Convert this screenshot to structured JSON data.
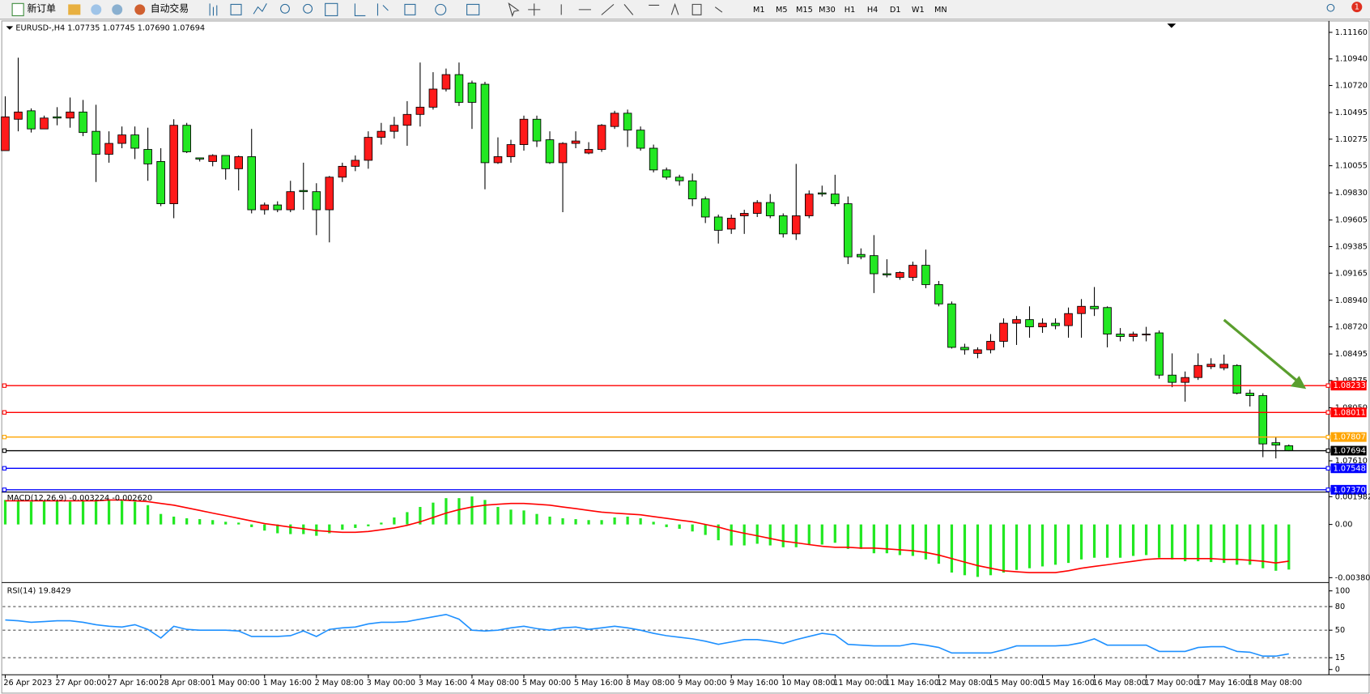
{
  "toolbar": {
    "new_order": "新订单",
    "auto_trading": "自动交易",
    "timeframes": [
      "M1",
      "M5",
      "M15",
      "M30",
      "H1",
      "H4",
      "D1",
      "W1",
      "MN"
    ],
    "notification_count": 1
  },
  "chart_data": [
    {
      "type": "candlestick",
      "title": "EURUSD-,H4 1.07735 1.07745 1.07690 1.07694",
      "categories": [
        "26 Apr 2023",
        null,
        null,
        null,
        "27 Apr 00:00",
        null,
        null,
        null,
        "27 Apr 16:00",
        null,
        null,
        null,
        "28 Apr 08:00",
        null,
        null,
        null,
        "1 May 00:00",
        null,
        null,
        null,
        "1 May 16:00",
        null,
        null,
        null,
        "2 May 08:00",
        null,
        null,
        null,
        "3 May 00:00",
        null,
        null,
        null,
        "3 May 16:00",
        null,
        null,
        null,
        "4 May 08:00",
        null,
        null,
        null,
        "5 May 00:00",
        null,
        null,
        null,
        "5 May 16:00",
        null,
        null,
        null,
        "8 May 08:00",
        null,
        null,
        null,
        "9 May 00:00",
        null,
        null,
        null,
        "9 May 16:00",
        null,
        null,
        null,
        "10 May 08:00",
        null,
        null,
        null,
        "11 May 00:00",
        null,
        null,
        null,
        "11 May 16:00",
        null,
        null,
        null,
        "12 May 08:00",
        null,
        null,
        null,
        "15 May 00:00",
        null,
        null,
        null,
        "15 May 16:00",
        null,
        null,
        null,
        "16 May 08:00",
        null,
        null,
        null,
        "17 May 00:00",
        null,
        null,
        null,
        "17 May 16:00",
        null,
        null,
        null,
        "18 May 08:00",
        null,
        null,
        null
      ],
      "open": [
        1.1018,
        1.1044,
        1.1051,
        1.1036,
        1.1046,
        1.1045,
        1.105,
        1.1034,
        1.1015,
        1.1024,
        1.1031,
        1.1019,
        1.1009,
        1.0974,
        1.1039,
        1.1012,
        1.1009,
        1.1014,
        1.1003,
        1.1013,
        1.0969,
        1.0973,
        1.0969,
        1.0985,
        1.0984,
        1.0969,
        1.0996,
        1.1005,
        1.101,
        1.1029,
        1.1034,
        1.1039,
        1.1048,
        1.1054,
        1.1069,
        1.1081,
        1.1074,
        1.1073,
        1.1008,
        1.1013,
        1.1023,
        1.1044,
        1.1027,
        1.1008,
        1.1024,
        1.1016,
        1.1019,
        1.1038,
        1.1049,
        1.1035,
        1.102,
        1.1002,
        1.0996,
        1.0993,
        1.0978,
        1.0963,
        1.0953,
        1.0964,
        1.0966,
        1.0975,
        1.0964,
        1.0949,
        1.0964,
        1.0983,
        1.0982,
        1.0974,
        1.0932,
        1.0931,
        1.0916,
        1.0913,
        1.0913,
        1.0923,
        1.0907,
        1.0891,
        1.0855,
        1.085,
        1.0853,
        1.086,
        1.0875,
        1.0878,
        1.0872,
        1.0875,
        1.0873,
        1.0883,
        1.0889,
        1.0888,
        1.0866,
        1.0864,
        1.0866,
        1.0867,
        1.0832,
        1.0826,
        1.083,
        1.0839,
        1.0838,
        1.084,
        1.0817,
        1.0815,
        1.0776,
        1.07735
      ],
      "high": [
        1.1063,
        1.1095,
        1.1053,
        1.1047,
        1.1054,
        1.1062,
        1.106,
        1.1056,
        1.1034,
        1.1038,
        1.1038,
        1.1037,
        1.102,
        1.1044,
        1.1041,
        1.1012,
        1.1015,
        1.1014,
        1.1014,
        1.1036,
        1.0975,
        1.0976,
        1.0993,
        1.1008,
        1.0991,
        1.0997,
        1.1008,
        1.1014,
        1.1034,
        1.1041,
        1.1046,
        1.1059,
        1.1091,
        1.1083,
        1.1086,
        1.1091,
        1.1076,
        1.1075,
        1.1029,
        1.1027,
        1.1047,
        1.1047,
        1.1034,
        1.1025,
        1.1034,
        1.1025,
        1.104,
        1.1051,
        1.1052,
        1.1038,
        1.1023,
        1.1004,
        1.0998,
        1.0999,
        1.098,
        1.0965,
        1.0965,
        1.0969,
        1.0977,
        1.0982,
        1.0966,
        1.1007,
        1.0985,
        1.0989,
        1.0998,
        1.098,
        1.0937,
        1.0948,
        1.0928,
        1.0918,
        1.0926,
        1.0936,
        1.091,
        1.0893,
        1.0858,
        1.0855,
        1.0866,
        1.0879,
        1.0881,
        1.0889,
        1.0879,
        1.0879,
        1.0888,
        1.0895,
        1.0905,
        1.0889,
        1.0871,
        1.0868,
        1.0872,
        1.0869,
        1.085,
        1.0835,
        1.085,
        1.0846,
        1.0849,
        1.0841,
        1.082,
        1.0817,
        1.0781,
        1.07745
      ],
      "low": [
        1.1018,
        1.1034,
        1.1033,
        1.1036,
        1.1039,
        1.1037,
        1.103,
        1.0992,
        1.1008,
        1.102,
        1.1011,
        1.0993,
        1.0972,
        1.0962,
        1.1016,
        1.1009,
        1.1005,
        1.0994,
        1.0985,
        1.0966,
        1.0965,
        1.0967,
        1.0967,
        1.0969,
        1.0948,
        1.0942,
        1.0992,
        1.1001,
        1.1003,
        1.1023,
        1.1028,
        1.1022,
        1.1038,
        1.1052,
        1.1067,
        1.1055,
        1.1036,
        1.0986,
        1.1007,
        1.1008,
        1.1018,
        1.1021,
        1.1007,
        1.0967,
        1.102,
        1.1015,
        1.1017,
        1.1036,
        1.1021,
        1.1018,
        1.1,
        1.0994,
        1.0989,
        1.0972,
        1.0958,
        1.0941,
        1.0949,
        1.0949,
        1.0963,
        1.0962,
        1.0946,
        1.0944,
        1.0962,
        1.098,
        1.0972,
        1.0924,
        1.0928,
        1.09,
        1.0913,
        1.0911,
        1.091,
        1.0904,
        1.0889,
        1.0854,
        1.0849,
        1.0846,
        1.085,
        1.0855,
        1.0857,
        1.0863,
        1.0867,
        1.087,
        1.0863,
        1.0863,
        1.0881,
        1.0855,
        1.086,
        1.086,
        1.086,
        1.0829,
        1.0822,
        1.081,
        1.0828,
        1.0837,
        1.0836,
        1.0816,
        1.0806,
        1.0764,
        1.0763,
        1.0769
      ],
      "close": [
        1.1046,
        1.105,
        1.1036,
        1.1045,
        1.1045,
        1.105,
        1.1033,
        1.1015,
        1.1024,
        1.1031,
        1.102,
        1.1007,
        1.0974,
        1.1039,
        1.1017,
        1.1011,
        1.1014,
        1.1003,
        1.1013,
        1.0969,
        1.0973,
        1.0969,
        1.0984,
        1.0984,
        1.0969,
        1.0996,
        1.1005,
        1.101,
        1.1029,
        1.1034,
        1.1039,
        1.1048,
        1.1054,
        1.1069,
        1.1081,
        1.1058,
        1.1058,
        1.1008,
        1.1013,
        1.1023,
        1.1044,
        1.1026,
        1.1008,
        1.1024,
        1.1026,
        1.1019,
        1.1039,
        1.1049,
        1.1035,
        1.102,
        1.1002,
        1.0996,
        1.0993,
        1.0978,
        1.0963,
        1.0952,
        1.0962,
        1.0966,
        1.0975,
        1.0964,
        1.0949,
        1.0964,
        1.0982,
        1.0982,
        1.0974,
        1.093,
        1.093,
        1.0916,
        1.0915,
        1.0917,
        1.0923,
        1.0907,
        1.0891,
        1.0855,
        1.0853,
        1.0853,
        1.086,
        1.0875,
        1.0878,
        1.0872,
        1.0875,
        1.0873,
        1.0883,
        1.0889,
        1.0887,
        1.0866,
        1.0864,
        1.0866,
        1.0866,
        1.0832,
        1.0826,
        1.083,
        1.084,
        1.0841,
        1.0841,
        1.0817,
        1.0815,
        1.0775,
        1.0774,
        1.07694
      ],
      "up_color": "#ff1a1a",
      "down_color": "#22e822",
      "wick_color": "#000000",
      "ylim": [
        1.07358,
        1.11247
      ],
      "yticks": [
        {
          "value": 1.1116,
          "label": "1.11160"
        },
        {
          "value": 1.1094,
          "label": "1.10940"
        },
        {
          "value": 1.1072,
          "label": "1.10720"
        },
        1.10495,
        1.10275,
        1.10055,
        {
          "value": 1.0983,
          "label": "1.09830"
        },
        1.09605,
        1.09385,
        1.09165,
        {
          "value": 1.0894,
          "label": "1.08940"
        },
        {
          "value": 1.0872,
          "label": "1.08720"
        },
        1.08495,
        1.08275,
        {
          "value": 1.0805,
          "label": "1.08050"
        },
        {
          "value": 1.0761,
          "label": "1.07610"
        }
      ],
      "levels": [
        {
          "value": 1.08233,
          "color": "#ff0000"
        },
        {
          "value": 1.08011,
          "color": "#ff0000"
        },
        {
          "value": 1.07807,
          "color": "#ffa500"
        },
        {
          "value": 1.07694,
          "color": "#000000"
        },
        {
          "value": 1.07548,
          "color": "#0000ff"
        },
        {
          "value": 1.0737,
          "label": "1.07370",
          "color": "#0000ff"
        }
      ]
    },
    {
      "type": "macd",
      "title": "MACD(12,26,9) -0.003224 -0.002620",
      "series": [
        {
          "style": "histogram",
          "color": "#22e822",
          "values": [
            0.00175,
            0.00175,
            0.00163,
            0.00169,
            0.00169,
            0.00163,
            0.00169,
            0.00175,
            0.00175,
            0.00169,
            0.00163,
            0.00138,
            0.00075,
            0.00056,
            0.00044,
            0.00038,
            0.00031,
            0.00019,
            0.00013,
            -0.00019,
            -0.00044,
            -0.00063,
            -0.00069,
            -0.00069,
            -0.00081,
            -0.00063,
            -0.00038,
            -0.00025,
            -0.00013,
            0.00013,
            0.0005,
            0.00088,
            0.00125,
            0.00156,
            0.00188,
            0.00188,
            0.002,
            0.00175,
            0.00125,
            0.00106,
            0.001,
            0.00075,
            0.00056,
            0.00044,
            0.00038,
            0.00031,
            0.00031,
            0.0005,
            0.00056,
            0.00044,
            0.00019,
            -0.00019,
            -0.00031,
            -0.0005,
            -0.00075,
            -0.00113,
            -0.0015,
            -0.0015,
            -0.00138,
            -0.0015,
            -0.00163,
            -0.00163,
            -0.00144,
            -0.00144,
            -0.00131,
            -0.00175,
            -0.00175,
            -0.00206,
            -0.00206,
            -0.00219,
            -0.00225,
            -0.0025,
            -0.00281,
            -0.00344,
            -0.00363,
            -0.00375,
            -0.00363,
            -0.00344,
            -0.00325,
            -0.00313,
            -0.003,
            -0.00288,
            -0.00275,
            -0.0025,
            -0.00238,
            -0.00238,
            -0.00238,
            -0.00225,
            -0.00219,
            -0.00238,
            -0.0025,
            -0.00263,
            -0.00263,
            -0.00269,
            -0.00275,
            -0.00288,
            -0.00288,
            -0.00313,
            -0.00331,
            -0.003224
          ]
        },
        {
          "style": "line",
          "color": "#ff0000",
          "values": [
            0.00169,
            0.00169,
            0.00169,
            0.00169,
            0.00169,
            0.00169,
            0.00169,
            0.00169,
            0.00175,
            0.00175,
            0.00169,
            0.00163,
            0.0015,
            0.00138,
            0.00119,
            0.001,
            0.00081,
            0.00063,
            0.00044,
            0.00025,
            6e-05,
            -6e-05,
            -0.00019,
            -0.00031,
            -0.00044,
            -0.0005,
            -0.00056,
            -0.00056,
            -0.0005,
            -0.00038,
            -0.00025,
            -6e-05,
            0.00019,
            0.0005,
            0.00081,
            0.00106,
            0.00125,
            0.00138,
            0.00144,
            0.0015,
            0.0015,
            0.00144,
            0.00138,
            0.00125,
            0.00113,
            0.001,
            0.00088,
            0.00081,
            0.00075,
            0.00069,
            0.00056,
            0.00044,
            0.00031,
            0.00019,
            0,
            -0.00019,
            -0.00044,
            -0.00063,
            -0.00081,
            -0.001,
            -0.00119,
            -0.00131,
            -0.00144,
            -0.00156,
            -0.00163,
            -0.00163,
            -0.00169,
            -0.00169,
            -0.00175,
            -0.00181,
            -0.00188,
            -0.002,
            -0.00219,
            -0.00244,
            -0.00269,
            -0.00294,
            -0.00313,
            -0.00331,
            -0.00338,
            -0.00344,
            -0.00344,
            -0.00344,
            -0.00331,
            -0.00313,
            -0.003,
            -0.00288,
            -0.00275,
            -0.00263,
            -0.0025,
            -0.00244,
            -0.00244,
            -0.00244,
            -0.00244,
            -0.00244,
            -0.0025,
            -0.0025,
            -0.00256,
            -0.00263,
            -0.00275,
            -0.00262
          ]
        }
      ],
      "ylim": [
        -0.00406,
        0.00225
      ],
      "yticks": [
        0.001982,
        {
          "value": 0,
          "label": "0.00"
        },
        -0.003804
      ]
    },
    {
      "type": "line",
      "title": "RSI(14) 19.8429",
      "color": "#1e90ff",
      "values": [
        63,
        62,
        60,
        61,
        62,
        62,
        60,
        57,
        55,
        54,
        57,
        51,
        40,
        55,
        51,
        50,
        50,
        50,
        49,
        42,
        42,
        42,
        43,
        49,
        42,
        51,
        53,
        54,
        58,
        60,
        60,
        61,
        64,
        67,
        70,
        64,
        50,
        49,
        50,
        53,
        55,
        52,
        50,
        53,
        54,
        51,
        53,
        55,
        53,
        50,
        46,
        43,
        41,
        39,
        36,
        32,
        35,
        38,
        38,
        36,
        33,
        38,
        42,
        46,
        44,
        32,
        31,
        30,
        30,
        30,
        33,
        31,
        28,
        21,
        21,
        21,
        21,
        25,
        30,
        30,
        30,
        30,
        31,
        34,
        39,
        31,
        31,
        31,
        31,
        23,
        23,
        23,
        28,
        29,
        29,
        23,
        22,
        17,
        17,
        19.8429
      ],
      "ylim": [
        -6.7,
        108.9
      ],
      "yticks": [
        100,
        80,
        50,
        15,
        0
      ],
      "levels": [
        80,
        50,
        15
      ]
    }
  ]
}
